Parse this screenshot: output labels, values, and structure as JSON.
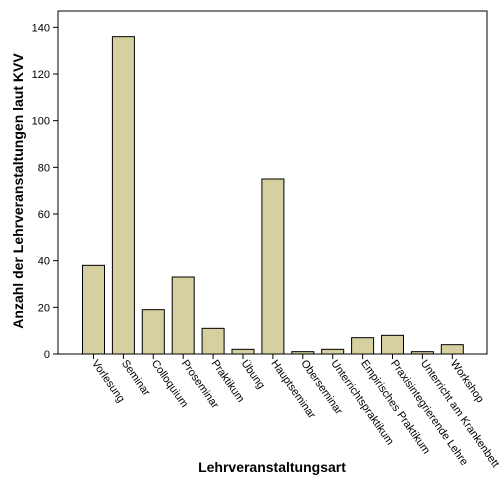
{
  "chart_data": {
    "type": "bar",
    "categories": [
      "Vorlesung",
      "Seminar",
      "Colloquium",
      "Proseminar",
      "Praktikum",
      "Übung",
      "Hauptseminar",
      "Oberseminar",
      "Unterrichtspraktikum",
      "Empirisches Praktikum",
      "Praxisintegrierende Lehre",
      "Unterricht am Krankenbett",
      "Workshop"
    ],
    "values": [
      38,
      136,
      19,
      33,
      11,
      2,
      75,
      1,
      2,
      7,
      8,
      1,
      4
    ],
    "xlabel": "Lehrveranstaltungsart",
    "ylabel": "Anzahl der Lehrveranstaltungen laut KVV",
    "ylim": [
      0,
      147
    ],
    "yticks": [
      0,
      20,
      40,
      60,
      80,
      100,
      120,
      140
    ],
    "grid": false,
    "colors": {
      "bar_fill": "#d6cf9f",
      "bar_stroke": "#000000"
    }
  }
}
